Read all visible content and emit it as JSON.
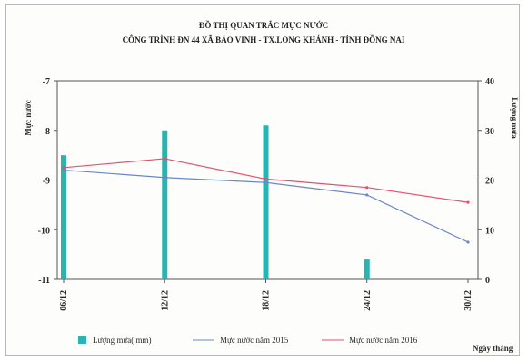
{
  "chart_data": {
    "type": "bar+line",
    "title": "ĐỒ THỊ QUAN TRẮC MỰC NƯỚC",
    "subtitle": "CÔNG TRÌNH ĐN 44  XÃ BẢO VINH - TX.LONG KHÁNH  - TỈNH ĐỒNG NAI",
    "ylabel_left": "Mực nước",
    "ylabel_right": "Lượng mưa",
    "xlabel": "Ngày tháng",
    "ylim_left": [
      -11,
      -7
    ],
    "ylim_right": [
      0,
      40
    ],
    "yticks_left": [
      "-7",
      "-8",
      "-9",
      "-10",
      "-11"
    ],
    "yticks_right": [
      "40",
      "30",
      "20",
      "10",
      "0"
    ],
    "categories": [
      "06/12",
      "12/12",
      "18/12",
      "24/12",
      "30/12"
    ],
    "bars": {
      "name": "Lượng mưa( mm)",
      "color": "#2bb3b1",
      "values": [
        25,
        30,
        31,
        4,
        0
      ]
    },
    "series": [
      {
        "name": "Mực nước năm 2015",
        "color": "#6b86c9",
        "values": [
          -8.8,
          -8.95,
          -9.05,
          -9.3,
          -10.25
        ]
      },
      {
        "name": "Mực nước năm 2016",
        "color": "#e8506e",
        "values": [
          -8.75,
          -8.57,
          -8.98,
          -9.15,
          -9.45
        ]
      }
    ]
  }
}
